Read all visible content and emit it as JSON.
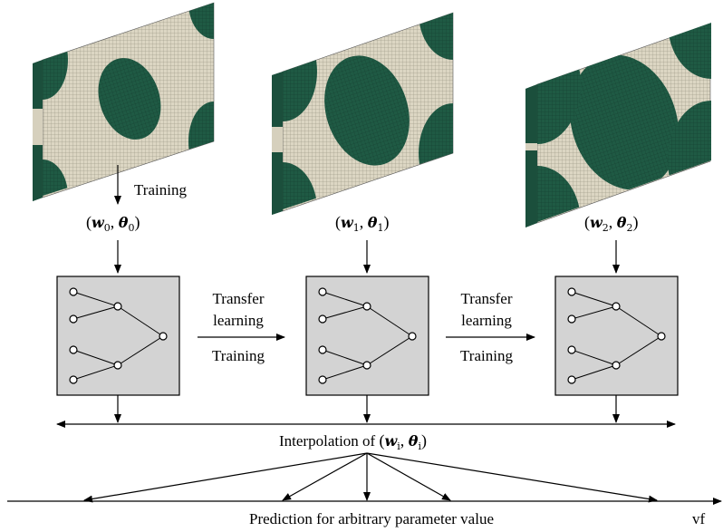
{
  "labels": {
    "training_top": "Training",
    "param_0": {
      "w": "w",
      "theta": "θ",
      "sub": "0"
    },
    "param_1": {
      "w": "w",
      "theta": "θ",
      "sub": "1"
    },
    "param_2": {
      "w": "w",
      "theta": "θ",
      "sub": "2"
    },
    "transfer_1": [
      "Transfer",
      "learning"
    ],
    "training_1": "Training",
    "transfer_2": [
      "Transfer",
      "learning"
    ],
    "training_2": "Training",
    "interpolation": {
      "prefix": "Interpolation of ",
      "w": "w",
      "theta": "θ",
      "sub": "i"
    },
    "prediction": "Prediction for arbitrary parameter value",
    "axis": "vf"
  },
  "colors": {
    "inclusion": "#1f5a44",
    "matrix": "#d8d2bf",
    "box": "#d3d3d3",
    "line": "#000000"
  }
}
